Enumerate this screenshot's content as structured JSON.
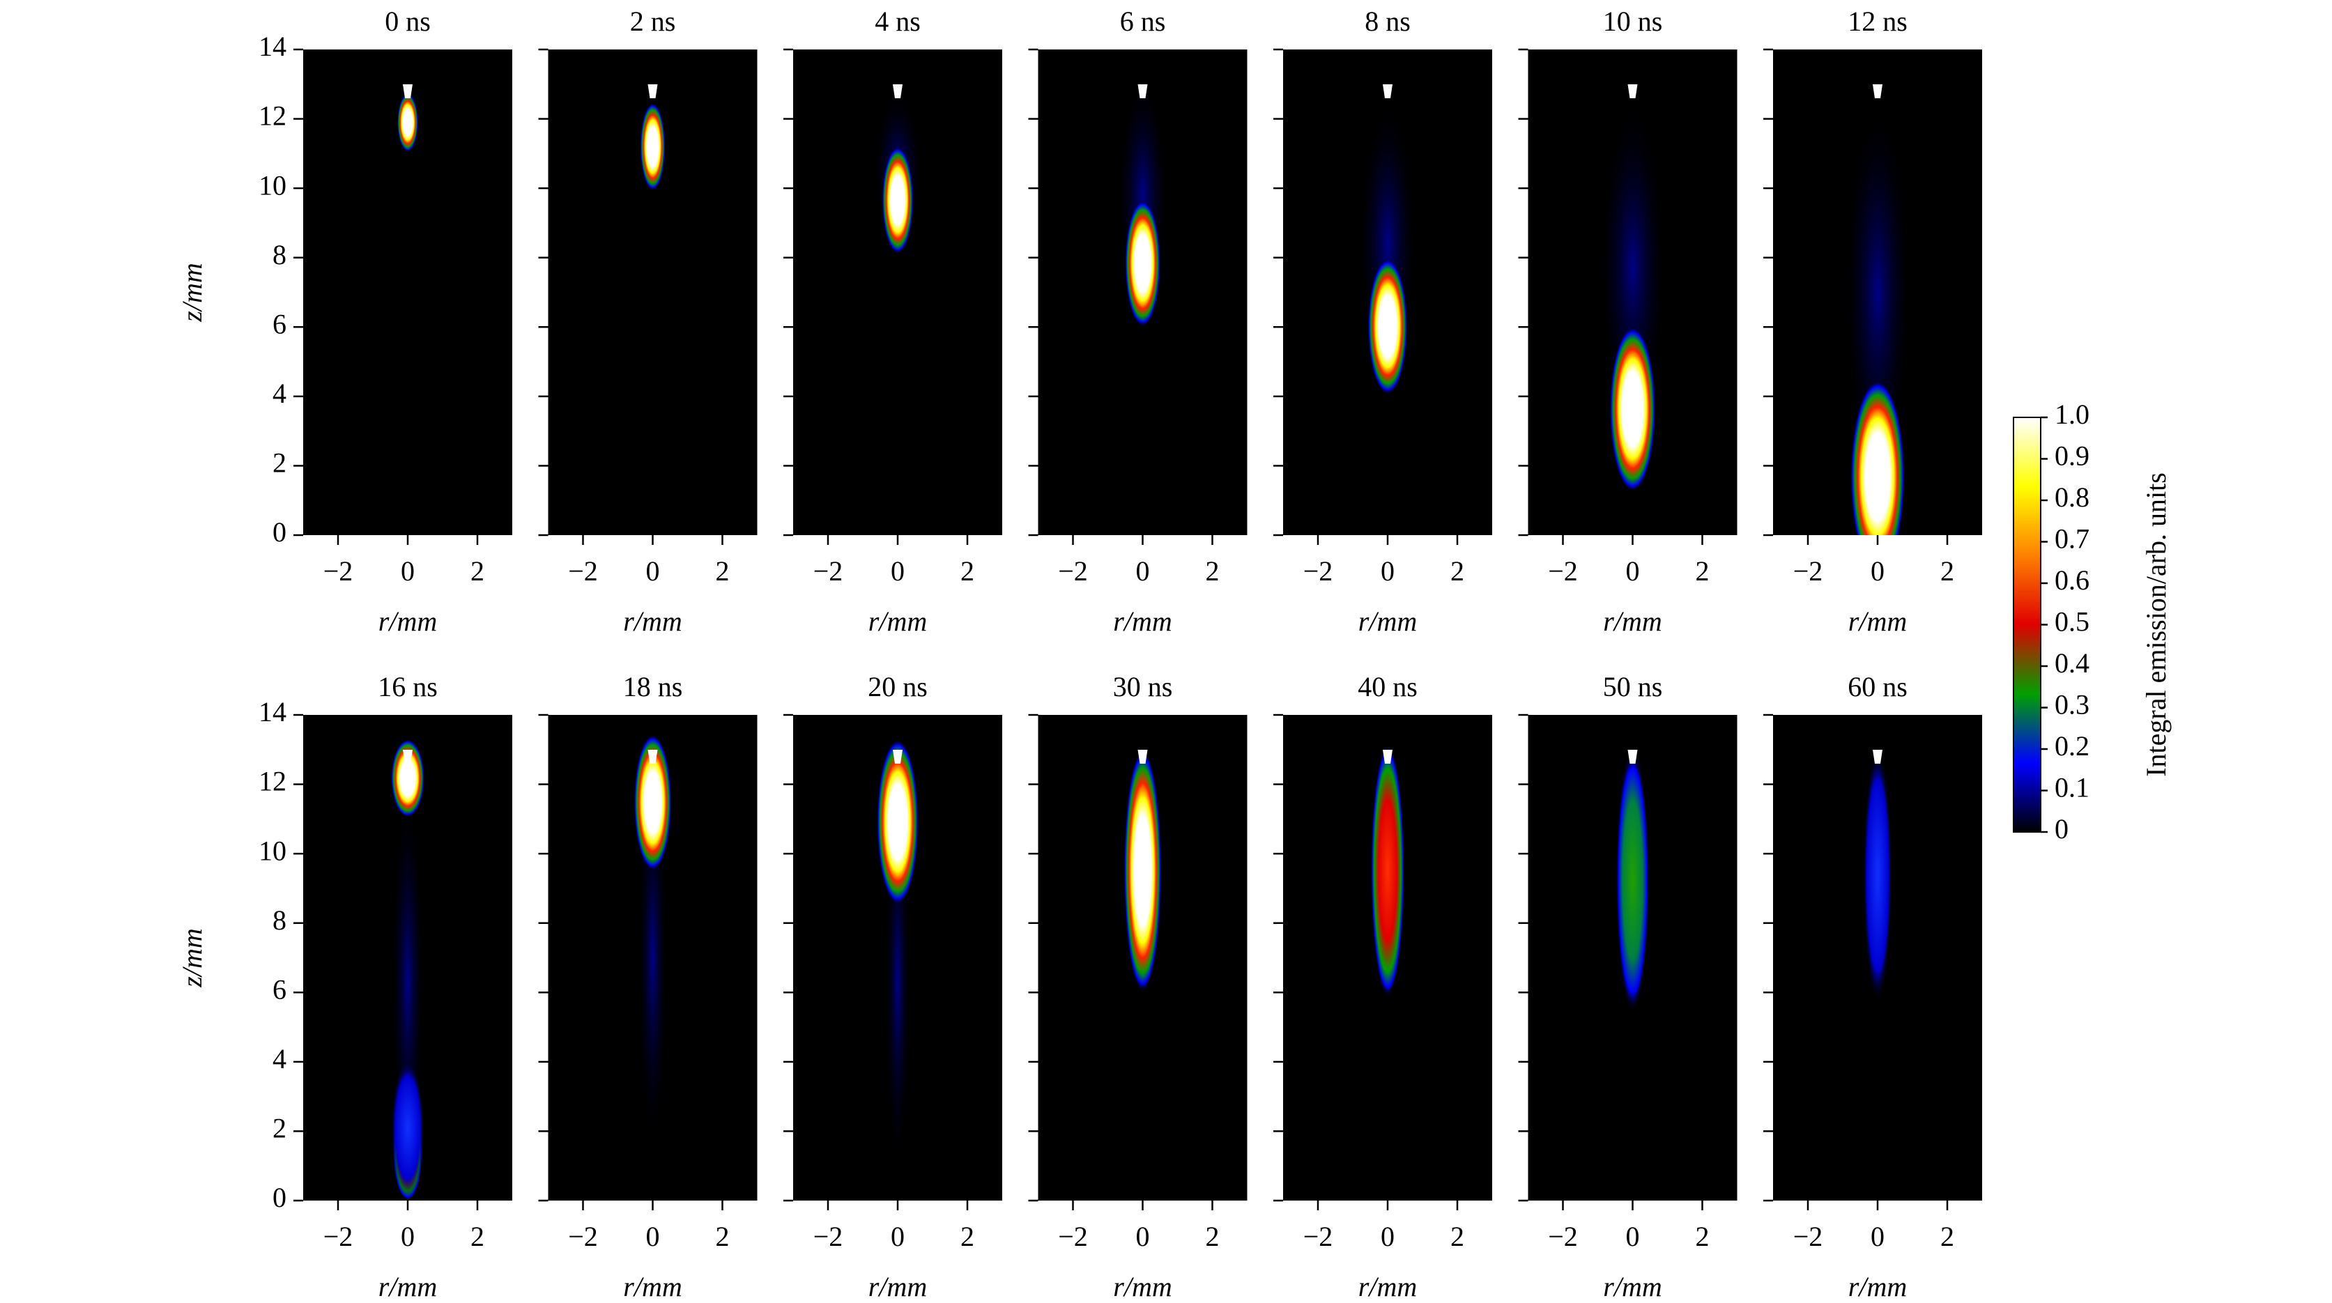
{
  "chart_data": [
    {
      "type": "heatmap",
      "title": "0 ns",
      "xlabel": "r/mm",
      "ylabel": "z/mm",
      "xlim": [
        -3,
        3
      ],
      "ylim": [
        0,
        14
      ],
      "xticks": [
        {
          "value": -2,
          "label": "−2"
        },
        0,
        2
      ],
      "yticks": [
        0,
        2,
        4,
        6,
        8,
        10,
        12,
        14
      ]
    },
    {
      "type": "heatmap",
      "title": "2 ns",
      "xlabel": "r/mm",
      "xlim": [
        -3,
        3
      ],
      "ylim": [
        0,
        14
      ],
      "xticks": [
        {
          "value": -2,
          "label": "−2"
        },
        0,
        2
      ],
      "yticks": [
        0,
        2,
        4,
        6,
        8,
        10,
        12,
        14
      ]
    },
    {
      "type": "heatmap",
      "title": "4 ns",
      "xlabel": "r/mm",
      "xlim": [
        -3,
        3
      ],
      "ylim": [
        0,
        14
      ],
      "xticks": [
        {
          "value": -2,
          "label": "−2"
        },
        0,
        2
      ],
      "yticks": [
        0,
        2,
        4,
        6,
        8,
        10,
        12,
        14
      ]
    },
    {
      "type": "heatmap",
      "title": "6 ns",
      "xlabel": "r/mm",
      "xlim": [
        -3,
        3
      ],
      "ylim": [
        0,
        14
      ],
      "xticks": [
        {
          "value": -2,
          "label": "−2"
        },
        0,
        2
      ],
      "yticks": [
        0,
        2,
        4,
        6,
        8,
        10,
        12,
        14
      ]
    },
    {
      "type": "heatmap",
      "title": "8 ns",
      "xlabel": "r/mm",
      "xlim": [
        -3,
        3
      ],
      "ylim": [
        0,
        14
      ],
      "xticks": [
        {
          "value": -2,
          "label": "−2"
        },
        0,
        2
      ],
      "yticks": [
        0,
        2,
        4,
        6,
        8,
        10,
        12,
        14
      ]
    },
    {
      "type": "heatmap",
      "title": "10 ns",
      "xlabel": "r/mm",
      "xlim": [
        -3,
        3
      ],
      "ylim": [
        0,
        14
      ],
      "xticks": [
        {
          "value": -2,
          "label": "−2"
        },
        0,
        2
      ],
      "yticks": [
        0,
        2,
        4,
        6,
        8,
        10,
        12,
        14
      ]
    },
    {
      "type": "heatmap",
      "title": "12 ns",
      "xlabel": "r/mm",
      "xlim": [
        -3,
        3
      ],
      "ylim": [
        0,
        14
      ],
      "xticks": [
        {
          "value": -2,
          "label": "−2"
        },
        0,
        2
      ],
      "yticks": [
        0,
        2,
        4,
        6,
        8,
        10,
        12,
        14
      ]
    },
    {
      "type": "heatmap",
      "title": "16 ns",
      "xlabel": "r/mm",
      "ylabel": "z/mm",
      "xlim": [
        -3,
        3
      ],
      "ylim": [
        0,
        14
      ],
      "xticks": [
        {
          "value": -2,
          "label": "−2"
        },
        0,
        2
      ],
      "yticks": [
        0,
        2,
        4,
        6,
        8,
        10,
        12,
        14
      ]
    },
    {
      "type": "heatmap",
      "title": "18 ns",
      "xlabel": "r/mm",
      "xlim": [
        -3,
        3
      ],
      "ylim": [
        0,
        14
      ],
      "xticks": [
        {
          "value": -2,
          "label": "−2"
        },
        0,
        2
      ],
      "yticks": [
        0,
        2,
        4,
        6,
        8,
        10,
        12,
        14
      ]
    },
    {
      "type": "heatmap",
      "title": "20 ns",
      "xlabel": "r/mm",
      "xlim": [
        -3,
        3
      ],
      "ylim": [
        0,
        14
      ],
      "xticks": [
        {
          "value": -2,
          "label": "−2"
        },
        0,
        2
      ],
      "yticks": [
        0,
        2,
        4,
        6,
        8,
        10,
        12,
        14
      ]
    },
    {
      "type": "heatmap",
      "title": "30 ns",
      "xlabel": "r/mm",
      "xlim": [
        -3,
        3
      ],
      "ylim": [
        0,
        14
      ],
      "xticks": [
        {
          "value": -2,
          "label": "−2"
        },
        0,
        2
      ],
      "yticks": [
        0,
        2,
        4,
        6,
        8,
        10,
        12,
        14
      ]
    },
    {
      "type": "heatmap",
      "title": "40 ns",
      "xlabel": "r/mm",
      "xlim": [
        -3,
        3
      ],
      "ylim": [
        0,
        14
      ],
      "xticks": [
        {
          "value": -2,
          "label": "−2"
        },
        0,
        2
      ],
      "yticks": [
        0,
        2,
        4,
        6,
        8,
        10,
        12,
        14
      ]
    },
    {
      "type": "heatmap",
      "title": "50 ns",
      "xlabel": "r/mm",
      "xlim": [
        -3,
        3
      ],
      "ylim": [
        0,
        14
      ],
      "xticks": [
        {
          "value": -2,
          "label": "−2"
        },
        0,
        2
      ],
      "yticks": [
        0,
        2,
        4,
        6,
        8,
        10,
        12,
        14
      ]
    },
    {
      "type": "heatmap",
      "title": "60 ns",
      "xlabel": "r/mm",
      "xlim": [
        -3,
        3
      ],
      "ylim": [
        0,
        14
      ],
      "xticks": [
        {
          "value": -2,
          "label": "−2"
        },
        0,
        2
      ],
      "yticks": [
        0,
        2,
        4,
        6,
        8,
        10,
        12,
        14
      ]
    }
  ],
  "colorbar": {
    "label": "Integral emission/arb. units",
    "lim": [
      0,
      1
    ],
    "ticks": [
      0,
      0.1,
      0.2,
      0.3,
      0.4,
      0.5,
      0.6,
      0.7,
      0.8,
      0.9,
      {
        "value": 1,
        "label": "1.0"
      }
    ],
    "colormap": [
      "#000000",
      "#0000ff",
      "#00a000",
      "#e00000",
      "#ff8000",
      "#ffff00",
      "#ffffff"
    ]
  }
}
